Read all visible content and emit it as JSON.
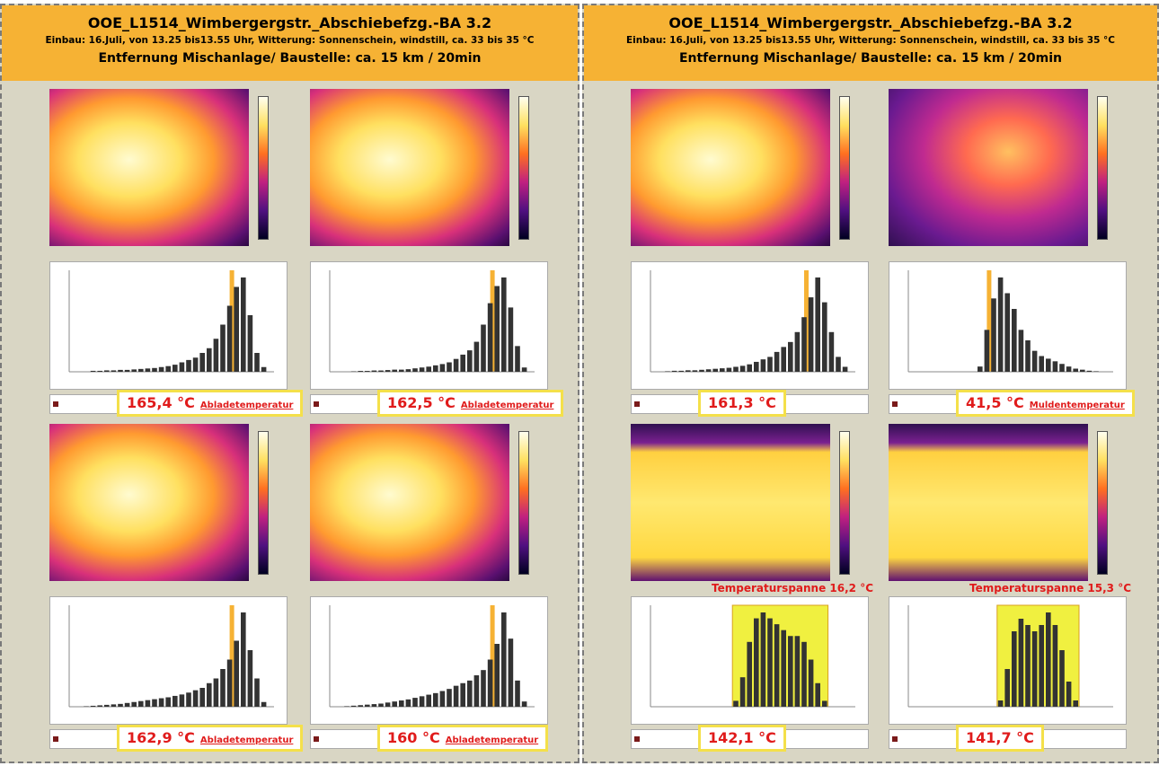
{
  "panels": [
    {
      "header": [
        "OOE_L1514_Wimbergergstr._Abschiebefzg.-BA 3.2",
        "Einbau: 16.Juli, von 13.25 bis13.55 Uhr, Witterung: Sonnenschein, windstill, ca. 33 bis 35 °C",
        "Entfernung Mischanlage/ Baustelle: ca. 15 km / 20min"
      ],
      "cells": [
        {
          "value": "165,4 °C",
          "label": "Abladetemperatur",
          "histogram": [
            0,
            0,
            0,
            0.2,
            0.2,
            0.3,
            0.3,
            0.4,
            0.4,
            0.5,
            0.6,
            0.7,
            0.8,
            1,
            1.2,
            1.5,
            2,
            2.5,
            3,
            4,
            5,
            7,
            10,
            14,
            18,
            20,
            12,
            4,
            1,
            0
          ]
        },
        {
          "value": "162,5 °C",
          "label": "Abladetemperatur",
          "histogram": [
            0,
            0,
            0,
            0.1,
            0.2,
            0.2,
            0.3,
            0.3,
            0.4,
            0.5,
            0.5,
            0.6,
            0.8,
            1,
            1.2,
            1.5,
            1.8,
            2.2,
            3,
            4,
            5,
            7,
            11,
            16,
            20,
            22,
            15,
            6,
            1,
            0
          ]
        },
        {
          "value": "162,9 °C",
          "label": "Abladetemperatur",
          "histogram": [
            0,
            0,
            0.1,
            0.2,
            0.3,
            0.4,
            0.5,
            0.6,
            0.8,
            1,
            1.2,
            1.4,
            1.6,
            1.8,
            2,
            2.3,
            2.6,
            3,
            3.5,
            4,
            5,
            6,
            8,
            10,
            14,
            20,
            12,
            6,
            1,
            0
          ]
        },
        {
          "value": "160 °C",
          "label": "Abladetemperatur",
          "histogram": [
            0,
            0,
            0.1,
            0.2,
            0.3,
            0.4,
            0.5,
            0.6,
            0.8,
            1,
            1.2,
            1.4,
            1.7,
            2,
            2.3,
            2.6,
            3,
            3.4,
            4,
            4.5,
            5,
            6,
            7,
            9,
            12,
            18,
            13,
            5,
            1,
            0
          ]
        }
      ]
    },
    {
      "header": [
        "OOE_L1514_Wimbergergstr._Abschiebefzg.-BA 3.2",
        "Einbau: 16.Juli, von 13.25 bis13.55 Uhr, Witterung: Sonnenschein, windstill, ca. 33 bis 35 °C",
        "Entfernung Mischanlage/ Baustelle: ca. 15 km / 20min"
      ],
      "cells": [
        {
          "value": "161,3 °C",
          "histogram": [
            0,
            0,
            0.1,
            0.2,
            0.2,
            0.3,
            0.3,
            0.4,
            0.5,
            0.6,
            0.7,
            0.8,
            1,
            1.2,
            1.5,
            2,
            2.5,
            3,
            4,
            5,
            6,
            8,
            11,
            15,
            19,
            14,
            8,
            3,
            1,
            0
          ]
        },
        {
          "value": "41,5 °C",
          "label": "Muldentemperatur",
          "histogram": [
            0,
            0,
            0,
            0,
            0,
            0,
            0,
            0,
            0,
            0,
            1,
            8,
            14,
            18,
            15,
            12,
            8,
            6,
            4,
            3,
            2.5,
            2,
            1.5,
            1,
            0.6,
            0.4,
            0.2,
            0.1,
            0,
            0
          ]
        },
        {
          "span": "Temperaturspanne 16,2 °C",
          "value": "142,1 °C",
          "histogram": [
            0,
            0,
            0,
            0,
            0,
            0,
            0,
            0,
            0,
            0,
            0,
            0,
            1,
            5,
            11,
            15,
            16,
            15,
            14,
            13,
            12,
            12,
            11,
            8,
            4,
            1,
            0,
            0,
            0,
            0
          ]
        },
        {
          "span": "Temperaturspanne 15,3 °C",
          "value": "141,7 °C",
          "histogram": [
            0,
            0,
            0,
            0,
            0,
            0,
            0,
            0,
            0,
            0,
            0,
            0,
            0,
            1,
            6,
            12,
            14,
            13,
            12,
            13,
            15,
            13,
            9,
            4,
            1,
            0,
            0,
            0,
            0,
            0
          ]
        }
      ]
    }
  ]
}
